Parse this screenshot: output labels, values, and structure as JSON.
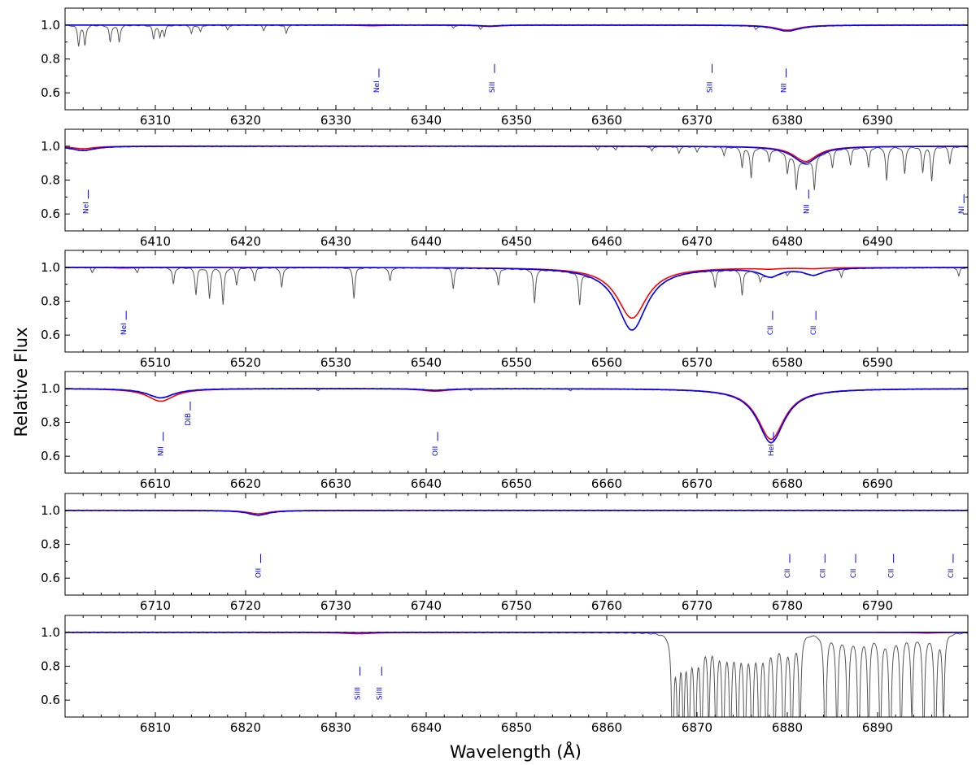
{
  "figure": {
    "ylabel": "Relative Flux",
    "xlabel": "Wavelength (Å)"
  },
  "colors": {
    "observed": "#555555",
    "model_red": "#ff0000",
    "model_blue": "#0000ff",
    "line_label": "#0000ff",
    "axes": "#000000",
    "background": "#ffffff"
  },
  "chart_data": [
    {
      "type": "line",
      "xlim": [
        6300,
        6400
      ],
      "ylim": [
        0.5,
        1.1
      ],
      "xticks": [
        6310,
        6320,
        6330,
        6340,
        6350,
        6360,
        6370,
        6380,
        6390
      ],
      "yticks": [
        0.6,
        0.8,
        1.0
      ],
      "tick_format": "1 decimal",
      "telluric": [
        [
          6301.5,
          0.12
        ],
        [
          6302.2,
          0.12
        ],
        [
          6305,
          0.1
        ],
        [
          6306,
          0.1
        ],
        [
          6309.8,
          0.08
        ],
        [
          6310.5,
          0.07
        ],
        [
          6311,
          0.06
        ],
        [
          6314,
          0.05
        ],
        [
          6315,
          0.04
        ],
        [
          6318,
          0.03
        ],
        [
          6322,
          0.03
        ],
        [
          6324.5,
          0.05
        ],
        [
          6343,
          0.02
        ],
        [
          6346,
          0.02
        ],
        [
          6376.5,
          0.02
        ]
      ],
      "series": [
        {
          "lines": [
            [
              6334,
              0.004,
              1.4
            ],
            [
              6347,
              0.008,
              1.4
            ],
            [
              6380,
              0.03,
              1.6
            ]
          ]
        },
        {
          "lines": [
            [
              6347,
              0.006,
              1.3
            ],
            [
              6380,
              0.035,
              1.7
            ]
          ]
        }
      ],
      "line_labels": [
        {
          "text": "NeI",
          "x": 6334.5,
          "y": 0.6
        },
        {
          "text": "SiII",
          "x": 6347.3,
          "y": 0.6
        },
        {
          "text": "SiII",
          "x": 6371.4,
          "y": 0.6
        },
        {
          "text": "NII",
          "x": 6379.6,
          "y": 0.6
        }
      ]
    },
    {
      "type": "line",
      "xlim": [
        6400,
        6500
      ],
      "ylim": [
        0.5,
        1.1
      ],
      "xticks": [
        6410,
        6420,
        6430,
        6440,
        6450,
        6460,
        6470,
        6480,
        6490
      ],
      "yticks": [
        0.6,
        0.8,
        1.0
      ],
      "tick_format": "1 decimal",
      "telluric": [
        [
          6459,
          0.02
        ],
        [
          6461,
          0.02
        ],
        [
          6465,
          0.03
        ],
        [
          6468,
          0.04
        ],
        [
          6470,
          0.03
        ],
        [
          6473,
          0.05
        ],
        [
          6475,
          0.12
        ],
        [
          6476,
          0.18
        ],
        [
          6478,
          0.08
        ],
        [
          6480,
          0.12
        ],
        [
          6481,
          0.18
        ],
        [
          6483,
          0.18
        ],
        [
          6485,
          0.1
        ],
        [
          6487,
          0.1
        ],
        [
          6489,
          0.12
        ],
        [
          6491,
          0.2
        ],
        [
          6493,
          0.16
        ],
        [
          6495,
          0.15
        ],
        [
          6496,
          0.2
        ],
        [
          6498,
          0.1
        ]
      ],
      "series": [
        {
          "lines": [
            [
              6402,
              0.015,
              1.5
            ],
            [
              6482,
              0.09,
              1.6
            ]
          ]
        },
        {
          "lines": [
            [
              6402,
              0.025,
              1.6
            ],
            [
              6482,
              0.1,
              1.7
            ]
          ]
        }
      ],
      "line_labels": [
        {
          "text": "NeI",
          "x": 6402.3,
          "y": 0.6
        },
        {
          "text": "NII",
          "x": 6482.1,
          "y": 0.6
        },
        {
          "text": "NI",
          "x": 6499.3,
          "y": 0.6
        }
      ]
    },
    {
      "type": "line",
      "xlim": [
        6500,
        6600
      ],
      "ylim": [
        0.5,
        1.1
      ],
      "xticks": [
        6510,
        6520,
        6530,
        6540,
        6550,
        6560,
        6570,
        6580,
        6590
      ],
      "yticks": [
        0.6,
        0.8,
        1.0
      ],
      "tick_format": "1 decimal",
      "telluric": [
        [
          6503,
          0.03
        ],
        [
          6508,
          0.03
        ],
        [
          6512,
          0.1
        ],
        [
          6514.5,
          0.16
        ],
        [
          6516,
          0.18
        ],
        [
          6517.5,
          0.22
        ],
        [
          6519,
          0.1
        ],
        [
          6521,
          0.08
        ],
        [
          6524,
          0.12
        ],
        [
          6532,
          0.18
        ],
        [
          6536,
          0.08
        ],
        [
          6543,
          0.12
        ],
        [
          6548,
          0.1
        ],
        [
          6552,
          0.2
        ],
        [
          6557,
          0.18
        ],
        [
          6572,
          0.1
        ],
        [
          6575,
          0.15
        ],
        [
          6577,
          0.05
        ],
        [
          6580,
          0.02
        ],
        [
          6586,
          0.05
        ],
        [
          6599,
          0.05
        ]
      ],
      "series": [
        {
          "lines": [
            [
              6506.5,
              0.004,
              1.4
            ],
            [
              6562.8,
              0.3,
              2.0
            ],
            [
              6578,
              0.006,
              1.3
            ],
            [
              6582.9,
              0.005,
              1.3
            ]
          ]
        },
        {
          "lines": [
            [
              6562.8,
              0.37,
              2.0
            ],
            [
              6578.1,
              0.05,
              1.3
            ],
            [
              6582.9,
              0.04,
              1.3
            ]
          ]
        }
      ],
      "line_labels": [
        {
          "text": "NeI",
          "x": 6506.5,
          "y": 0.6
        },
        {
          "text": "CII",
          "x": 6578.1,
          "y": 0.6
        },
        {
          "text": "CII",
          "x": 6582.9,
          "y": 0.6
        }
      ]
    },
    {
      "type": "line",
      "xlim": [
        6600,
        6700
      ],
      "ylim": [
        0.5,
        1.1
      ],
      "xticks": [
        6610,
        6620,
        6630,
        6640,
        6650,
        6660,
        6670,
        6680,
        6690
      ],
      "yticks": [
        0.6,
        0.8,
        1.0
      ],
      "tick_format": "1 decimal",
      "telluric": [
        [
          6628,
          0.01
        ],
        [
          6645,
          0.01
        ],
        [
          6656,
          0.01
        ]
      ],
      "series": [
        {
          "lines": [
            [
              6610.6,
              0.075,
              1.8
            ],
            [
              6641,
              0.015,
              1.8
            ],
            [
              6678.2,
              0.3,
              1.8
            ]
          ]
        },
        {
          "lines": [
            [
              6610.6,
              0.055,
              1.8
            ],
            [
              6641,
              0.01,
              1.8
            ],
            [
              6678.2,
              0.32,
              1.8
            ]
          ]
        }
      ],
      "line_labels": [
        {
          "text": "DIB",
          "x": 6613.6,
          "y": 0.78
        },
        {
          "text": "NII",
          "x": 6610.6,
          "y": 0.6
        },
        {
          "text": "OII",
          "x": 6641.0,
          "y": 0.6
        },
        {
          "text": "HeI",
          "x": 6678.2,
          "y": 0.6
        }
      ]
    },
    {
      "type": "line",
      "xlim": [
        6700,
        6800
      ],
      "ylim": [
        0.5,
        1.1
      ],
      "xticks": [
        6710,
        6720,
        6730,
        6740,
        6750,
        6760,
        6770,
        6780,
        6790
      ],
      "yticks": [
        0.6,
        0.8,
        1.0
      ],
      "tick_format": "1 decimal",
      "telluric": [],
      "series": [
        {
          "lines": [
            [
              6721.4,
              0.02,
              1.4
            ]
          ]
        },
        {
          "lines": [
            [
              6721.4,
              0.028,
              1.4
            ]
          ]
        }
      ],
      "line_labels": [
        {
          "text": "OII",
          "x": 6721.4,
          "y": 0.6
        },
        {
          "text": "CII",
          "x": 6780.0,
          "y": 0.6
        },
        {
          "text": "CII",
          "x": 6783.9,
          "y": 0.6
        },
        {
          "text": "CII",
          "x": 6787.3,
          "y": 0.6
        },
        {
          "text": "CII",
          "x": 6791.5,
          "y": 0.6
        },
        {
          "text": "CII",
          "x": 6798.1,
          "y": 0.6
        }
      ]
    },
    {
      "type": "line",
      "xlim": [
        6800,
        6900
      ],
      "ylim": [
        0.5,
        1.1
      ],
      "xticks": [
        6810,
        6820,
        6830,
        6840,
        6850,
        6860,
        6870,
        6880,
        6890
      ],
      "yticks": [
        0.6,
        0.8,
        1.0
      ],
      "tick_format": "1 decimal",
      "telluric": [
        [
          6867.3,
          0.8
        ],
        [
          6867.9,
          0.7
        ],
        [
          6868.5,
          0.55
        ],
        [
          6869.1,
          0.65
        ],
        [
          6869.8,
          0.75
        ],
        [
          6870.5,
          0.7
        ],
        [
          6871.3,
          0.5
        ],
        [
          6872.1,
          0.65
        ],
        [
          6872.9,
          0.8
        ],
        [
          6873.7,
          0.7
        ],
        [
          6874.5,
          0.75
        ],
        [
          6875.3,
          0.8
        ],
        [
          6876.1,
          0.82
        ],
        [
          6876.9,
          0.75
        ],
        [
          6877.7,
          0.85
        ],
        [
          6878.6,
          0.75
        ],
        [
          6879.6,
          0.85
        ],
        [
          6880.5,
          0.8
        ],
        [
          6881.4,
          0.6
        ],
        [
          6884.2,
          0.8
        ],
        [
          6885.5,
          0.6
        ],
        [
          6886.7,
          0.7
        ],
        [
          6887.9,
          0.8
        ],
        [
          6889.0,
          0.6
        ],
        [
          6890.3,
          0.7
        ],
        [
          6891.4,
          0.85
        ],
        [
          6892.6,
          0.65
        ],
        [
          6893.8,
          0.5
        ],
        [
          6895.1,
          0.65
        ],
        [
          6896.4,
          0.8
        ],
        [
          6897.3,
          0.5
        ]
      ],
      "series": [
        {
          "lines": [
            [
              6832.5,
              0.008,
              2.0
            ],
            [
              6895.5,
              0.004,
              1.4
            ]
          ]
        },
        {
          "lines": [
            [
              6832.5,
              0.002,
              1.5
            ]
          ]
        }
      ],
      "line_labels": [
        {
          "text": "SiIII",
          "x": 6832.4,
          "y": 0.6
        },
        {
          "text": "SiIII",
          "x": 6834.8,
          "y": 0.6
        }
      ]
    }
  ]
}
